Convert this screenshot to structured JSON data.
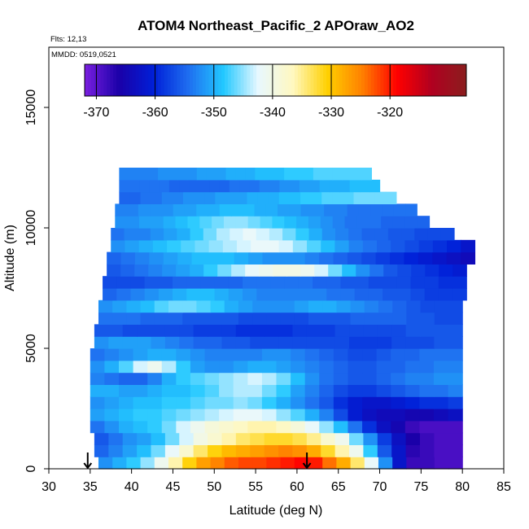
{
  "chart_data": {
    "type": "heatmap",
    "title": "ATOM4 Northeast_Pacific_2 APOraw_AO2",
    "flights_label": "Flts: 12,13",
    "date_label": "MMDD: 0519,0521",
    "xlabel": "Latitude (deg N)",
    "ylabel": "Altitude (m)",
    "xlim": [
      30,
      85
    ],
    "ylim": [
      0,
      17500
    ],
    "x_ticks": [
      30,
      35,
      40,
      45,
      50,
      55,
      60,
      65,
      70,
      75,
      80,
      85
    ],
    "y_ticks": [
      0,
      5000,
      10000,
      15000
    ],
    "colorbar": {
      "range": [
        -372,
        -307
      ],
      "ticks": [
        -370,
        -360,
        -350,
        -340,
        -330,
        -320
      ],
      "colors": [
        "#7a1fe0",
        "#1a00a8",
        "#0020d8",
        "#1f6ff0",
        "#22c8ff",
        "#e8f8ff",
        "#fff8c0",
        "#ffd000",
        "#ff8000",
        "#ff0000",
        "#b00020",
        "#8b1e1e"
      ]
    },
    "arrows_latitude": [
      34.7,
      61.2
    ],
    "bands": [
      {
        "alt_range": [
          0,
          500
        ],
        "lat_range": [
          36,
          80
        ],
        "values": [
          -352,
          -350,
          -348,
          -345,
          -341,
          -336,
          -331,
          -327,
          -325,
          -323,
          -322,
          -322,
          -321,
          -320,
          -319,
          -320,
          -324,
          -328,
          -334,
          -342,
          -352,
          -362,
          -368,
          -368,
          -369,
          -369
        ]
      },
      {
        "alt_range": [
          500,
          1000
        ],
        "lat_range": [
          35.5,
          80
        ],
        "values": [
          -355,
          -353,
          -351,
          -349,
          -346,
          -342,
          -338,
          -334,
          -331,
          -329,
          -328,
          -327,
          -326,
          -325,
          -326,
          -328,
          -332,
          -336,
          -341,
          -348,
          -356,
          -362,
          -367,
          -368,
          -369,
          -369
        ]
      },
      {
        "alt_range": [
          1000,
          1500
        ],
        "lat_range": [
          35.5,
          80
        ],
        "values": [
          -356,
          -354,
          -352,
          -351,
          -349,
          -346,
          -343,
          -340,
          -338,
          -336,
          -334,
          -333,
          -332,
          -332,
          -333,
          -335,
          -338,
          -341,
          -346,
          -352,
          -358,
          -363,
          -366,
          -368,
          -369,
          -369
        ]
      },
      {
        "alt_range": [
          1500,
          2000
        ],
        "lat_range": [
          35,
          80
        ],
        "values": [
          -354,
          -352,
          -350,
          -349,
          -348,
          -346,
          -343,
          -341,
          -339,
          -338,
          -337,
          -336,
          -336,
          -337,
          -339,
          -342,
          -345,
          -349,
          -354,
          -359,
          -363,
          -365,
          -368,
          -369,
          -369,
          -369
        ]
      },
      {
        "alt_range": [
          2000,
          2500
        ],
        "lat_range": [
          35,
          80
        ],
        "values": [
          -351,
          -350,
          -349,
          -348,
          -348,
          -347,
          -346,
          -345,
          -344,
          -343,
          -342,
          -342,
          -343,
          -345,
          -347,
          -350,
          -353,
          -357,
          -361,
          -363,
          -364,
          -364,
          -365,
          -365,
          -364,
          -363
        ]
      },
      {
        "alt_range": [
          2500,
          3000
        ],
        "lat_range": [
          35,
          80
        ],
        "values": [
          -352,
          -351,
          -350,
          -349,
          -349,
          -348,
          -348,
          -347,
          -346,
          -346,
          -345,
          -346,
          -348,
          -350,
          -352,
          -354,
          -356,
          -359,
          -361,
          -362,
          -362,
          -361,
          -360,
          -359,
          -359,
          -358
        ]
      },
      {
        "alt_range": [
          3000,
          3500
        ],
        "lat_range": [
          35,
          80
        ],
        "values": [
          -350,
          -350,
          -351,
          -351,
          -350,
          -349,
          -349,
          -348,
          -347,
          -345,
          -344,
          -344,
          -346,
          -348,
          -351,
          -353,
          -355,
          -357,
          -358,
          -358,
          -357,
          -356,
          -355,
          -354,
          -354,
          -353
        ]
      },
      {
        "alt_range": [
          3500,
          4000
        ],
        "lat_range": [
          35,
          80
        ],
        "values": [
          -353,
          -354,
          -355,
          -355,
          -353,
          -350,
          -348,
          -347,
          -346,
          -345,
          -344,
          -343,
          -344,
          -346,
          -349,
          -352,
          -354,
          -355,
          -356,
          -356,
          -355,
          -354,
          -353,
          -353,
          -352,
          -352
        ]
      },
      {
        "alt_range": [
          4000,
          4500
        ],
        "lat_range": [
          35,
          80
        ],
        "values": [
          -352,
          -350,
          -347,
          -343,
          -341,
          -344,
          -348,
          -351,
          -352,
          -352,
          -351,
          -350,
          -350,
          -351,
          -352,
          -353,
          -354,
          -355,
          -356,
          -356,
          -355,
          -355,
          -354,
          -354,
          -353,
          -353
        ]
      },
      {
        "alt_range": [
          4500,
          5000
        ],
        "lat_range": [
          35,
          80
        ],
        "values": [
          -354,
          -353,
          -352,
          -351,
          -350,
          -350,
          -351,
          -352,
          -353,
          -353,
          -353,
          -353,
          -352,
          -352,
          -353,
          -354,
          -355,
          -356,
          -357,
          -357,
          -356,
          -355,
          -355,
          -354,
          -354,
          -354
        ]
      },
      {
        "alt_range": [
          5000,
          5500
        ],
        "lat_range": [
          35.5,
          80
        ],
        "values": [
          -352,
          -351,
          -351,
          -351,
          -352,
          -353,
          -354,
          -355,
          -355,
          -356,
          -356,
          -357,
          -357,
          -357,
          -357,
          -357,
          -357,
          -357,
          -358,
          -358,
          -358,
          -357,
          -357,
          -357,
          -356,
          -356
        ]
      },
      {
        "alt_range": [
          5500,
          6000
        ],
        "lat_range": [
          35.5,
          80
        ],
        "values": [
          -356,
          -356,
          -357,
          -357,
          -357,
          -357,
          -357,
          -358,
          -358,
          -358,
          -359,
          -359,
          -359,
          -359,
          -358,
          -358,
          -358,
          -357,
          -357,
          -357,
          -357,
          -357,
          -356,
          -356,
          -356,
          -356
        ]
      },
      {
        "alt_range": [
          6000,
          6500
        ],
        "lat_range": [
          36,
          80
        ],
        "values": [
          -354,
          -354,
          -354,
          -355,
          -355,
          -355,
          -356,
          -356,
          -356,
          -356,
          -357,
          -357,
          -357,
          -357,
          -357,
          -356,
          -356,
          -356,
          -355,
          -355,
          -355,
          -355,
          -356,
          -356,
          -357,
          -357
        ]
      },
      {
        "alt_range": [
          6500,
          7000
        ],
        "lat_range": [
          36,
          80
        ],
        "values": [
          -352,
          -351,
          -350,
          -349,
          -347,
          -346,
          -346,
          -347,
          -348,
          -350,
          -351,
          -352,
          -352,
          -352,
          -351,
          -350,
          -350,
          -351,
          -352,
          -353,
          -354,
          -355,
          -356,
          -357,
          -357,
          -357
        ]
      },
      {
        "alt_range": [
          7000,
          7500
        ],
        "lat_range": [
          36.5,
          80.5
        ],
        "values": [
          -355,
          -354,
          -353,
          -352,
          -351,
          -350,
          -349,
          -349,
          -350,
          -351,
          -352,
          -353,
          -353,
          -353,
          -353,
          -353,
          -354,
          -354,
          -355,
          -355,
          -356,
          -356,
          -357,
          -358,
          -358,
          -358
        ]
      },
      {
        "alt_range": [
          7500,
          8000
        ],
        "lat_range": [
          36.5,
          80.5
        ],
        "values": [
          -357,
          -357,
          -357,
          -356,
          -356,
          -355,
          -355,
          -355,
          -355,
          -355,
          -354,
          -354,
          -354,
          -354,
          -354,
          -355,
          -355,
          -356,
          -356,
          -357,
          -357,
          -357,
          -358,
          -358,
          -359,
          -359
        ]
      },
      {
        "alt_range": [
          8000,
          8500
        ],
        "lat_range": [
          37,
          80.5
        ],
        "values": [
          -356,
          -355,
          -354,
          -353,
          -352,
          -351,
          -350,
          -348,
          -346,
          -344,
          -342,
          -341,
          -340,
          -340,
          -341,
          -343,
          -346,
          -349,
          -352,
          -354,
          -356,
          -357,
          -358,
          -359,
          -360,
          -361
        ]
      },
      {
        "alt_range": [
          8500,
          9000
        ],
        "lat_range": [
          37,
          81.5
        ],
        "values": [
          -355,
          -354,
          -353,
          -352,
          -351,
          -350,
          -349,
          -349,
          -349,
          -350,
          -351,
          -352,
          -352,
          -352,
          -353,
          -354,
          -355,
          -356,
          -357,
          -358,
          -359,
          -360,
          -361,
          -362,
          -363,
          -364
        ]
      },
      {
        "alt_range": [
          9000,
          9500
        ],
        "lat_range": [
          37.5,
          81.5
        ],
        "values": [
          -352,
          -351,
          -350,
          -349,
          -348,
          -347,
          -346,
          -345,
          -344,
          -343,
          -342,
          -342,
          -343,
          -345,
          -347,
          -349,
          -351,
          -353,
          -354,
          -355,
          -356,
          -357,
          -358,
          -359,
          -360,
          -362
        ]
      },
      {
        "alt_range": [
          9500,
          10000
        ],
        "lat_range": [
          37.5,
          79
        ],
        "values": [
          -354,
          -353,
          -353,
          -352,
          -351,
          -350,
          -348,
          -346,
          -344,
          -343,
          -342,
          -343,
          -344,
          -346,
          -348,
          -350,
          -352,
          -353,
          -354,
          -355,
          -355,
          -356,
          -356,
          -357,
          -357,
          -357
        ]
      },
      {
        "alt_range": [
          10000,
          10500
        ],
        "lat_range": [
          38,
          76
        ],
        "values": [
          -352,
          -352,
          -351,
          -351,
          -350,
          -349,
          -348,
          -347,
          -346,
          -345,
          -345,
          -346,
          -347,
          -348,
          -349,
          -350,
          -351,
          -352,
          -353,
          -354,
          -354,
          -354,
          -355,
          -355,
          -355,
          -355
        ]
      },
      {
        "alt_range": [
          10500,
          11000
        ],
        "lat_range": [
          38,
          74.5
        ],
        "values": [
          -353,
          -353,
          -352,
          -352,
          -352,
          -351,
          -351,
          -350,
          -350,
          -349,
          -349,
          -349,
          -350,
          -350,
          -351,
          -351,
          -352,
          -352,
          -353,
          -353,
          -354,
          -354,
          -354,
          -354,
          -354,
          -354
        ]
      },
      {
        "alt_range": [
          11000,
          11500
        ],
        "lat_range": [
          38.5,
          72
        ],
        "values": [
          -355,
          -355,
          -354,
          -354,
          -353,
          -353,
          -352,
          -352,
          -352,
          -351,
          -351,
          -351,
          -350,
          -350,
          -350,
          -349,
          -349,
          -348,
          -348,
          -347,
          -347,
          -347,
          -346,
          -346,
          -346,
          -346
        ]
      },
      {
        "alt_range": [
          11500,
          12000
        ],
        "lat_range": [
          38.5,
          70
        ],
        "values": [
          -354,
          -354,
          -354,
          -354,
          -354,
          -355,
          -355,
          -355,
          -355,
          -355,
          -355,
          -354,
          -354,
          -354,
          -353,
          -353,
          -352,
          -352,
          -351,
          -351,
          -350,
          -350,
          -350,
          -349,
          -349,
          -349
        ]
      },
      {
        "alt_range": [
          12000,
          12500
        ],
        "lat_range": [
          38.5,
          69
        ],
        "values": [
          -353,
          -353,
          -353,
          -353,
          -352,
          -352,
          -352,
          -352,
          -351,
          -351,
          -351,
          -350,
          -350,
          -350,
          -349,
          -349,
          -349,
          -348,
          -348,
          -348,
          -347,
          -347,
          -347,
          -347,
          -347,
          -347
        ]
      }
    ]
  }
}
